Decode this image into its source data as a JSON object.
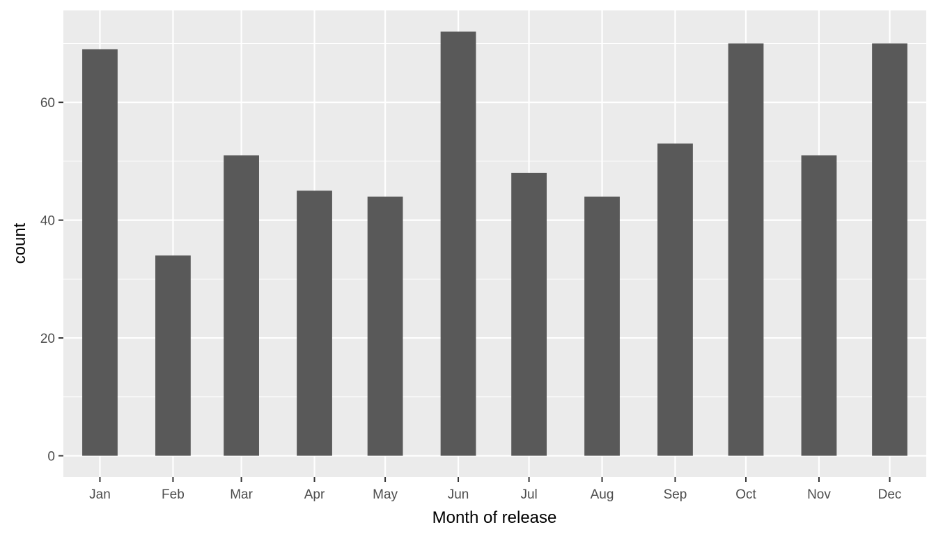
{
  "chart_data": {
    "type": "bar",
    "xlabel": "Month of release",
    "ylabel": "count",
    "y_ticks": [
      0,
      20,
      40,
      60
    ],
    "ylim": [
      -3.6,
      75.6
    ],
    "grid": "on",
    "colors": {
      "panel_background": "#ebebeb",
      "grid_line": "#ffffff",
      "bar_fill": "#595959",
      "tick_label": "#4d4d4d",
      "axis_title": "#000000"
    },
    "bars": [
      {
        "month": "Jan",
        "date": "2000-01-01",
        "count": 69
      },
      {
        "month": "Feb",
        "date": "2000-02-01",
        "count": 34
      },
      {
        "month": "Mar",
        "date": "2000-03-01",
        "count": 51
      },
      {
        "month": "Apr",
        "date": "2000-04-01",
        "count": 45
      },
      {
        "month": "May",
        "date": "2000-05-01",
        "count": 44
      },
      {
        "month": "Jun",
        "date": "2000-06-01",
        "count": 72
      },
      {
        "month": "Jul",
        "date": "2000-07-01",
        "count": 48
      },
      {
        "month": "Aug",
        "date": "2000-08-01",
        "count": 44
      },
      {
        "month": "Sep",
        "date": "2000-09-01",
        "count": 53
      },
      {
        "month": "Oct",
        "date": "2000-10-01",
        "count": 70
      },
      {
        "month": "Nov",
        "date": "2000-11-01",
        "count": 51
      },
      {
        "month": "Dec",
        "date": "2000-12-01",
        "count": 70
      }
    ],
    "x_ticks": [
      {
        "label": "Jan",
        "date": "2000-01-01"
      },
      {
        "label": "Feb",
        "date": "2000-02-01"
      },
      {
        "label": "Mar",
        "date": "2000-03-01"
      },
      {
        "label": "Apr",
        "date": "2000-04-01"
      },
      {
        "label": "May",
        "date": "2000-05-01"
      },
      {
        "label": "Jun",
        "date": "2000-06-01"
      },
      {
        "label": "Jul",
        "date": "2000-07-01"
      },
      {
        "label": "Aug",
        "date": "2000-08-01"
      },
      {
        "label": "Sep",
        "date": "2000-09-01"
      },
      {
        "label": "Oct",
        "date": "2000-10-01"
      },
      {
        "label": "Nov",
        "date": "2000-11-01"
      },
      {
        "label": "Dec",
        "date": "2000-12-01"
      }
    ]
  }
}
